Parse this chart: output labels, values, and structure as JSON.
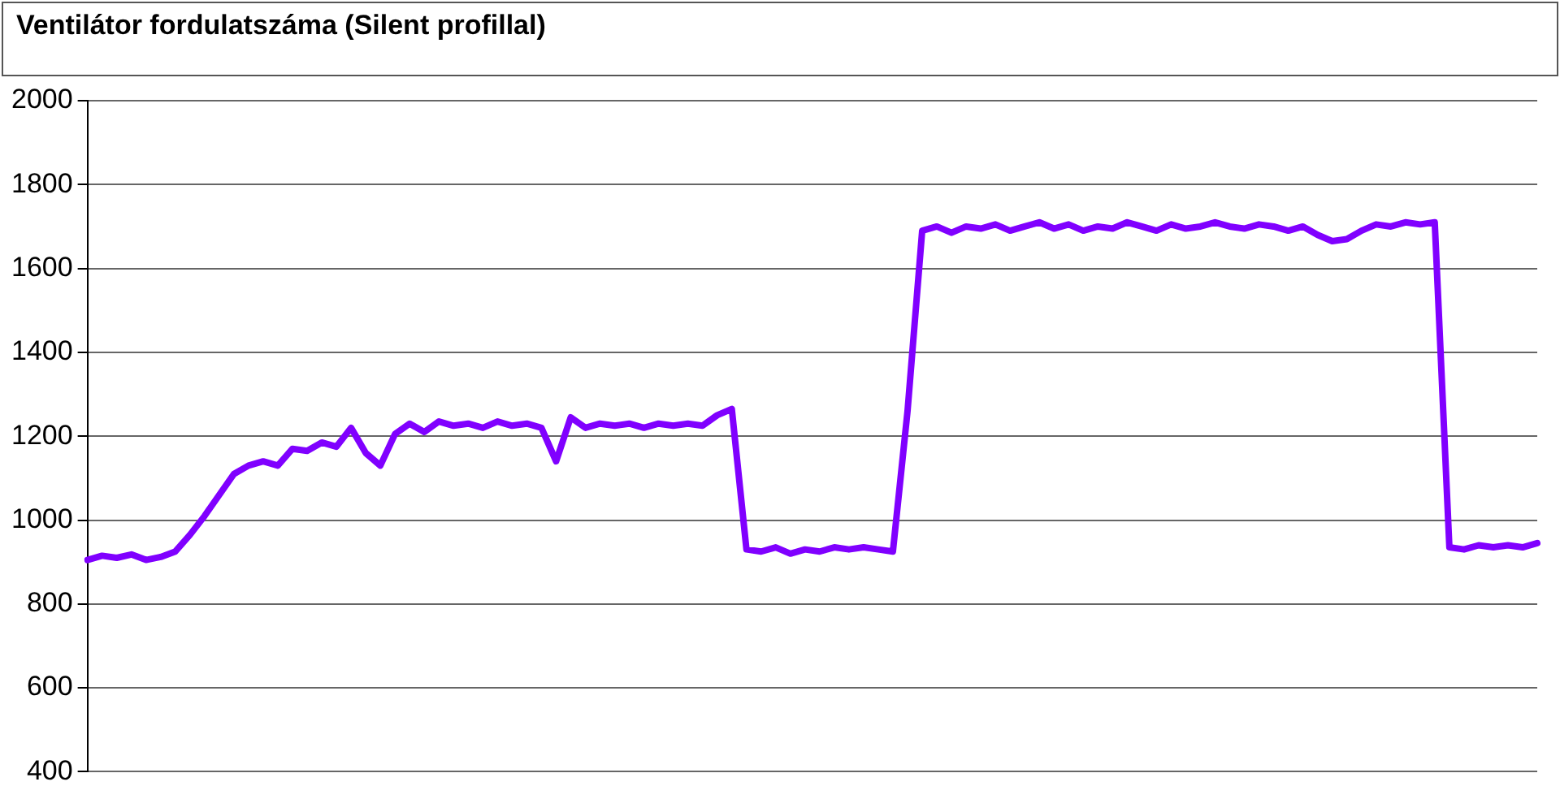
{
  "chart_data": {
    "type": "line",
    "title": "Ventilátor fordulatszáma (Silent profillal)",
    "categories": [
      null,
      null,
      null,
      null,
      null,
      null,
      null,
      null,
      null,
      null,
      null,
      null,
      null,
      null,
      null,
      null,
      null,
      null,
      null,
      null,
      null,
      null,
      null,
      null,
      null,
      null,
      null,
      null,
      null,
      null,
      null,
      null,
      null,
      null,
      null,
      null,
      null,
      null,
      null,
      null,
      null,
      null,
      null,
      null,
      null,
      null,
      null,
      null,
      null,
      null,
      null,
      null,
      null,
      null,
      null,
      null,
      null,
      null,
      null,
      null,
      null,
      null,
      null,
      null,
      null,
      null,
      null,
      null,
      null,
      null,
      null,
      null,
      null,
      null,
      null,
      null,
      null,
      null,
      null,
      null,
      null,
      null,
      null,
      null,
      null,
      null,
      null,
      null,
      null,
      null,
      null,
      null,
      null,
      null,
      null,
      null,
      null,
      null,
      null,
      null
    ],
    "series": [
      {
        "color": "#8000ff",
        "values": [
          905,
          915,
          910,
          918,
          905,
          912,
          925,
          965,
          1010,
          1060,
          1110,
          1130,
          1140,
          1130,
          1170,
          1165,
          1185,
          1175,
          1220,
          1160,
          1130,
          1205,
          1230,
          1210,
          1235,
          1225,
          1230,
          1220,
          1235,
          1225,
          1230,
          1220,
          1140,
          1245,
          1220,
          1230,
          1225,
          1230,
          1220,
          1230,
          1225,
          1230,
          1225,
          1250,
          1265,
          930,
          925,
          935,
          920,
          930,
          925,
          935,
          930,
          935,
          930,
          925,
          1260,
          1690,
          1700,
          1685,
          1700,
          1695,
          1705,
          1690,
          1700,
          1710,
          1695,
          1705,
          1690,
          1700,
          1695,
          1710,
          1700,
          1690,
          1705,
          1695,
          1700,
          1710,
          1700,
          1695,
          1705,
          1700,
          1690,
          1700,
          1680,
          1665,
          1670,
          1690,
          1705,
          1700,
          1710,
          1705,
          1710,
          935,
          930,
          940,
          935,
          940,
          935,
          945
        ]
      }
    ],
    "ylim": [
      400,
      2000
    ],
    "yticks": [
      400,
      600,
      800,
      1000,
      1200,
      1400,
      1600,
      1800,
      2000
    ],
    "grid": "y",
    "marker": "none",
    "legend": false
  }
}
